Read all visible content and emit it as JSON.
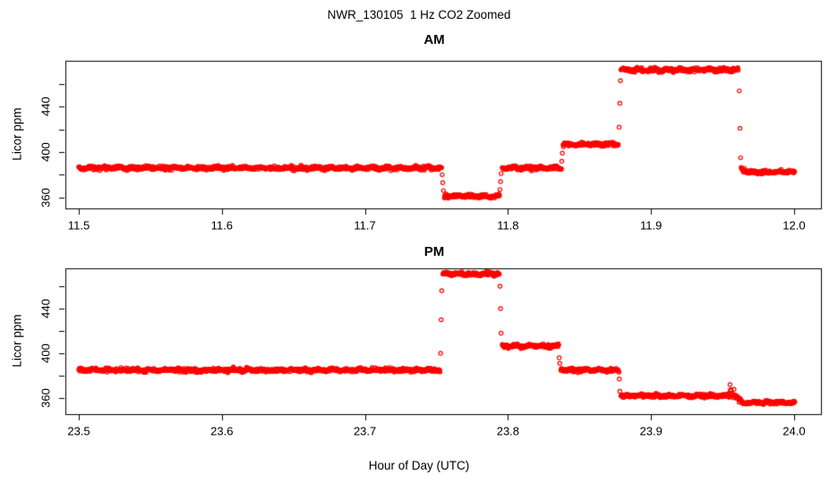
{
  "header": {
    "title": "NWR_130105  1 Hz CO2 Zoomed"
  },
  "xlabel": "Hour of Day (UTC)",
  "colors": {
    "points": "#ff0000",
    "axis": "#000000",
    "background": "#ffffff",
    "text": "#000000"
  },
  "chart_data": [
    {
      "type": "scatter",
      "title": "AM",
      "ylabel": "Licor ppm",
      "marker": "open-circle",
      "point_color": "#ff0000",
      "sample_rate_hz": 1,
      "grid": false,
      "xlim": [
        11.4906,
        12.0188
      ],
      "ylim": [
        350.3,
        480.5
      ],
      "xticks": [
        11.5,
        11.6,
        11.7,
        11.8,
        11.9,
        12.0
      ],
      "xtick_labels": [
        "11.5",
        "11.6",
        "11.7",
        "11.8",
        "11.9",
        "12.0"
      ],
      "yticks": [
        360,
        380,
        400,
        420,
        440,
        460
      ],
      "ytick_labels": [
        "360",
        "",
        "400",
        "",
        "440",
        ""
      ],
      "segments": [
        {
          "t0": 11.5,
          "t1": 11.7535,
          "ppm": 386.0,
          "noise": 0.75
        },
        {
          "t0": 11.7555,
          "t1": 11.794,
          "ppm": 361.0,
          "noise": 0.7
        },
        {
          "t0": 11.796,
          "t1": 11.8373,
          "ppm": 386.0,
          "noise": 0.7
        },
        {
          "t0": 11.8385,
          "t1": 11.8772,
          "ppm": 407.0,
          "noise": 0.7
        },
        {
          "t0": 11.879,
          "t1": 11.961,
          "ppm": 472.5,
          "noise": 0.8
        },
        {
          "t0": 11.963,
          "t1": 11.9662,
          "ppm": 386.0,
          "ppm_end": 383.0,
          "noise": 0.8
        },
        {
          "t0": 11.9662,
          "t1": 12.0005,
          "ppm": 382.5,
          "noise": 0.7
        }
      ],
      "transition_points": [
        [
          11.754,
          380
        ],
        [
          11.7544,
          373
        ],
        [
          11.7549,
          366
        ],
        [
          11.7944,
          367
        ],
        [
          11.7948,
          374
        ],
        [
          11.7952,
          381
        ],
        [
          11.8376,
          392
        ],
        [
          11.838,
          399
        ],
        [
          11.8777,
          422
        ],
        [
          11.8782,
          443
        ],
        [
          11.8786,
          463
        ],
        [
          11.9617,
          454
        ],
        [
          11.9622,
          421
        ],
        [
          11.9626,
          395
        ]
      ]
    },
    {
      "type": "scatter",
      "title": "PM",
      "ylabel": "Licor ppm",
      "marker": "open-circle",
      "point_color": "#ff0000",
      "sample_rate_hz": 1,
      "grid": false,
      "xlim": [
        23.4906,
        24.0188
      ],
      "ylim": [
        345.6,
        476.0
      ],
      "xticks": [
        23.5,
        23.6,
        23.7,
        23.8,
        23.9,
        24.0
      ],
      "xtick_labels": [
        "23.5",
        "23.6",
        "23.7",
        "23.8",
        "23.9",
        "24.0"
      ],
      "yticks": [
        360,
        380,
        400,
        420,
        440,
        460
      ],
      "ytick_labels": [
        "360",
        "",
        "400",
        "",
        "440",
        ""
      ],
      "segments": [
        {
          "t0": 23.5,
          "t1": 23.7525,
          "ppm": 385.0,
          "noise": 0.75
        },
        {
          "t0": 23.7545,
          "t1": 23.794,
          "ppm": 471.0,
          "noise": 0.8
        },
        {
          "t0": 23.796,
          "t1": 23.8355,
          "ppm": 406.5,
          "noise": 0.7
        },
        {
          "t0": 23.837,
          "t1": 23.8775,
          "ppm": 385.0,
          "noise": 0.7
        },
        {
          "t0": 23.879,
          "t1": 23.955,
          "ppm": 362.0,
          "noise": 0.7
        },
        {
          "t0": 23.9555,
          "t1": 23.963,
          "ppm": 367.0,
          "ppm_end": 357.0,
          "noise": 1.6
        },
        {
          "t0": 23.963,
          "t1": 24.0005,
          "ppm": 356.0,
          "noise": 0.7
        }
      ],
      "transition_points": [
        [
          23.7529,
          400
        ],
        [
          23.7533,
          430
        ],
        [
          23.7537,
          456
        ],
        [
          23.7944,
          460
        ],
        [
          23.7948,
          440
        ],
        [
          23.7952,
          418
        ],
        [
          23.8358,
          396
        ],
        [
          23.8362,
          391
        ],
        [
          23.8778,
          377
        ],
        [
          23.8782,
          366
        ],
        [
          23.9552,
          372
        ]
      ]
    }
  ]
}
